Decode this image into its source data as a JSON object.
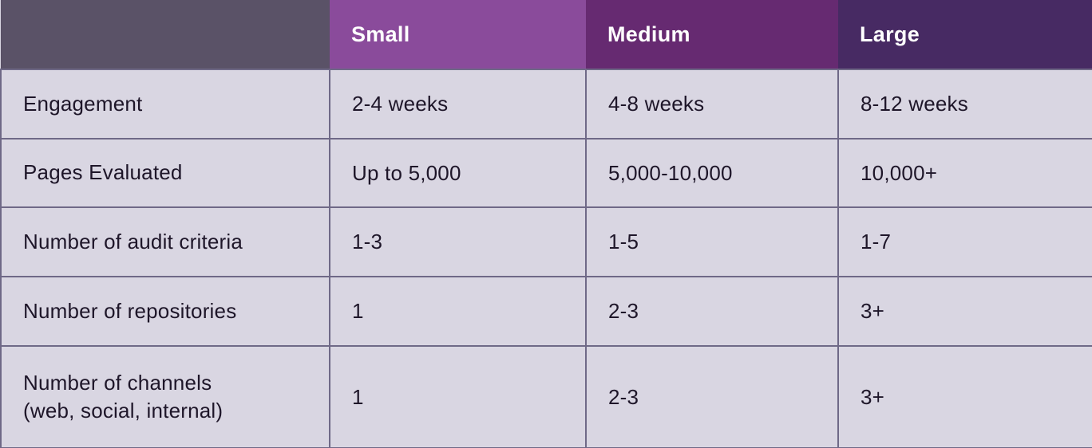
{
  "table": {
    "title": "engagement-tier-comparison",
    "colors": {
      "corner_bg": "#5a5267",
      "body_bg": "#d9d6e2",
      "border": "#6f6987",
      "header_text": "#ffffff",
      "body_text": "#1e1629"
    },
    "header": {
      "corner_label": "",
      "columns": [
        {
          "label": "Small",
          "bg": "#8a4b9b"
        },
        {
          "label": "Medium",
          "bg": "#662a71"
        },
        {
          "label": "Large",
          "bg": "#472a63"
        }
      ]
    },
    "rows": [
      {
        "label": "Engagement",
        "values": [
          "2-4 weeks",
          "4-8 weeks",
          "8-12 weeks"
        ]
      },
      {
        "label": "Pages Evaluated",
        "values": [
          "Up to 5,000",
          "5,000-10,000",
          "10,000+"
        ]
      },
      {
        "label": "Number of audit criteria",
        "values": [
          "1-3",
          "1-5",
          "1-7"
        ]
      },
      {
        "label": "Number of repositories",
        "values": [
          "1",
          "2-3",
          "3+"
        ]
      },
      {
        "label": "Number of channels\n(web, social, internal)",
        "values": [
          "1",
          "2-3",
          "3+"
        ]
      }
    ]
  }
}
